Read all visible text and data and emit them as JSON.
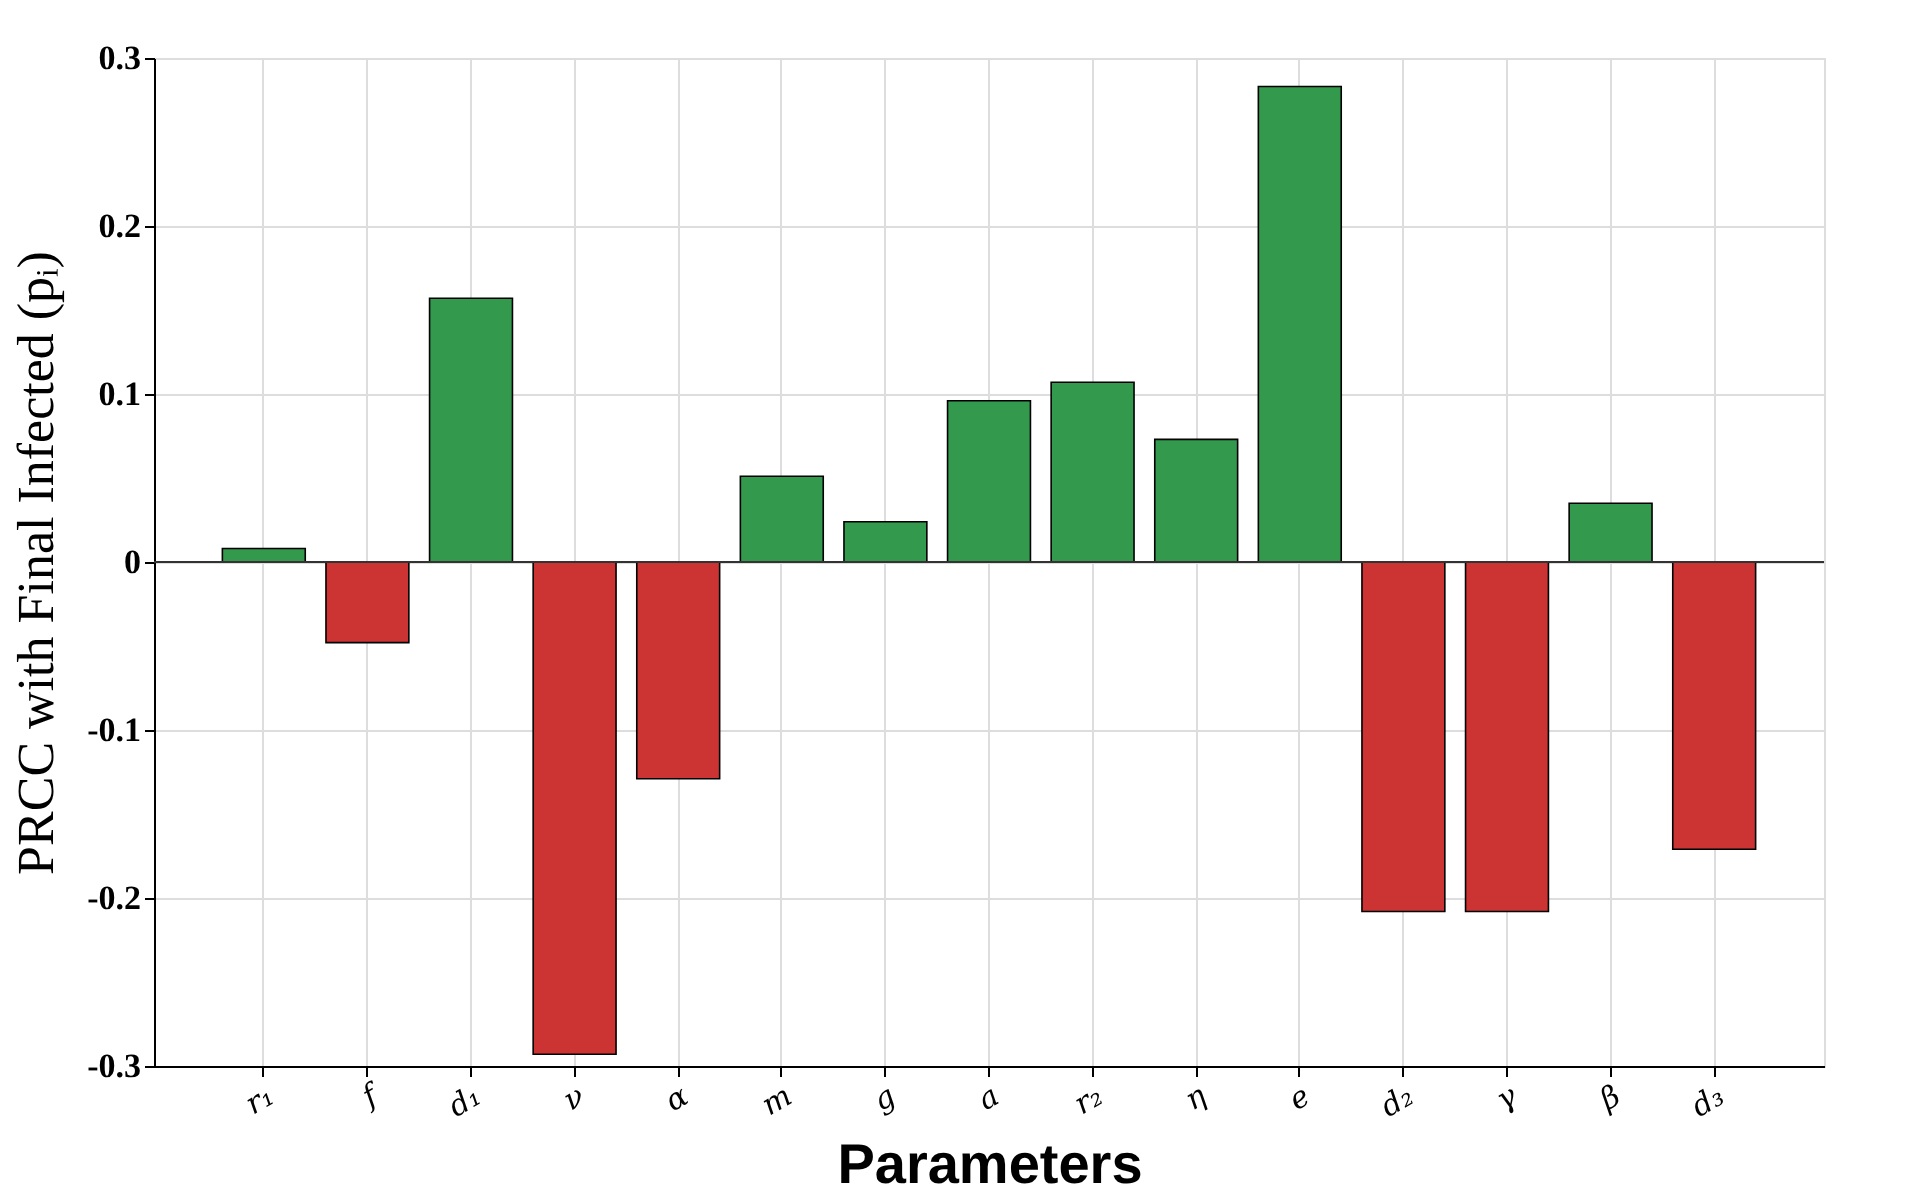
{
  "chart_data": {
    "type": "bar",
    "xlabel": "Parameters",
    "ylabel": "PRCC with Final Infected (pᵢ)",
    "categories": [
      "r₁",
      "f",
      "d₁",
      "ν",
      "α",
      "m",
      "g",
      "a",
      "r₂",
      "η",
      "e",
      "d₂",
      "γ",
      "β",
      "d₃"
    ],
    "values": [
      0.008,
      -0.048,
      0.157,
      -0.293,
      -0.129,
      0.051,
      0.024,
      0.096,
      0.107,
      0.073,
      0.283,
      -0.208,
      -0.208,
      0.035,
      -0.171
    ],
    "colors": [
      "#339a4d",
      "#cc3333",
      "#339a4d",
      "#cc3333",
      "#cc3333",
      "#339a4d",
      "#339a4d",
      "#339a4d",
      "#339a4d",
      "#339a4d",
      "#339a4d",
      "#cc3333",
      "#cc3333",
      "#339a4d",
      "#cc3333"
    ],
    "ylim": [
      -0.3,
      0.3
    ],
    "yticks": [
      -0.3,
      -0.2,
      -0.1,
      0,
      0.1,
      0.2,
      0.3
    ],
    "ref_lines": [
      {
        "axis": "y",
        "value": 0,
        "color": "#333333"
      }
    ],
    "grid": true
  }
}
